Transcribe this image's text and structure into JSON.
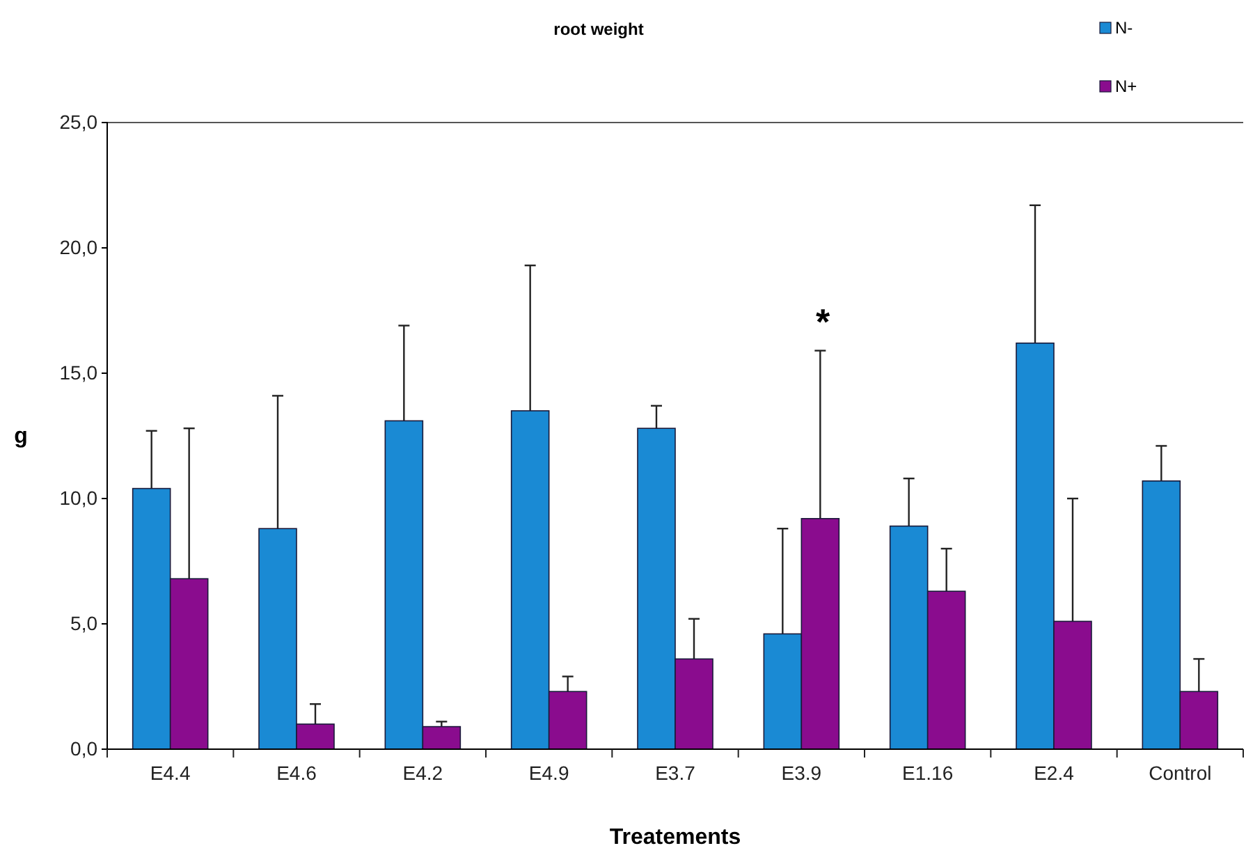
{
  "chart_data": {
    "type": "bar",
    "title": "root weight",
    "xlabel": "Treatements",
    "ylabel": "g",
    "categories": [
      "E4.4",
      "E4.6",
      "E4.2",
      "E4.9",
      "E3.7",
      "E3.9",
      "E1.16",
      "E2.4",
      "Control"
    ],
    "series": [
      {
        "name": "N-",
        "color": "#1a8ad4",
        "values": [
          10.4,
          8.8,
          13.1,
          13.5,
          12.8,
          4.6,
          8.9,
          16.2,
          10.7
        ],
        "errors": [
          [
            10.4,
            12.7
          ],
          [
            8.8,
            14.1
          ],
          [
            13.1,
            16.9
          ],
          [
            13.5,
            19.3
          ],
          [
            12.8,
            13.7
          ],
          [
            4.6,
            8.8
          ],
          [
            8.9,
            10.8
          ],
          [
            16.2,
            21.7
          ],
          [
            10.7,
            12.1
          ]
        ]
      },
      {
        "name": "N+",
        "color": "#8a0c8e",
        "values": [
          6.8,
          1.0,
          0.9,
          2.3,
          3.6,
          9.2,
          6.3,
          5.1,
          2.3
        ],
        "errors": [
          [
            6.8,
            12.8
          ],
          [
            1.0,
            1.8
          ],
          [
            0.9,
            1.1
          ],
          [
            2.3,
            2.9
          ],
          [
            3.6,
            5.2
          ],
          [
            9.2,
            15.9
          ],
          [
            6.3,
            8.0
          ],
          [
            5.1,
            10.0
          ],
          [
            2.3,
            3.6
          ]
        ]
      }
    ],
    "ylim": [
      0,
      25
    ],
    "yticks": [
      {
        "value": 0,
        "label": "0,0"
      },
      {
        "value": 5,
        "label": "5,0"
      },
      {
        "value": 10,
        "label": "10,0"
      },
      {
        "value": 15,
        "label": "15,0"
      },
      {
        "value": 20,
        "label": "20,0"
      },
      {
        "value": 25,
        "label": "25,0"
      }
    ],
    "grid": false,
    "legend": "top right",
    "annotations": [
      "*"
    ]
  }
}
